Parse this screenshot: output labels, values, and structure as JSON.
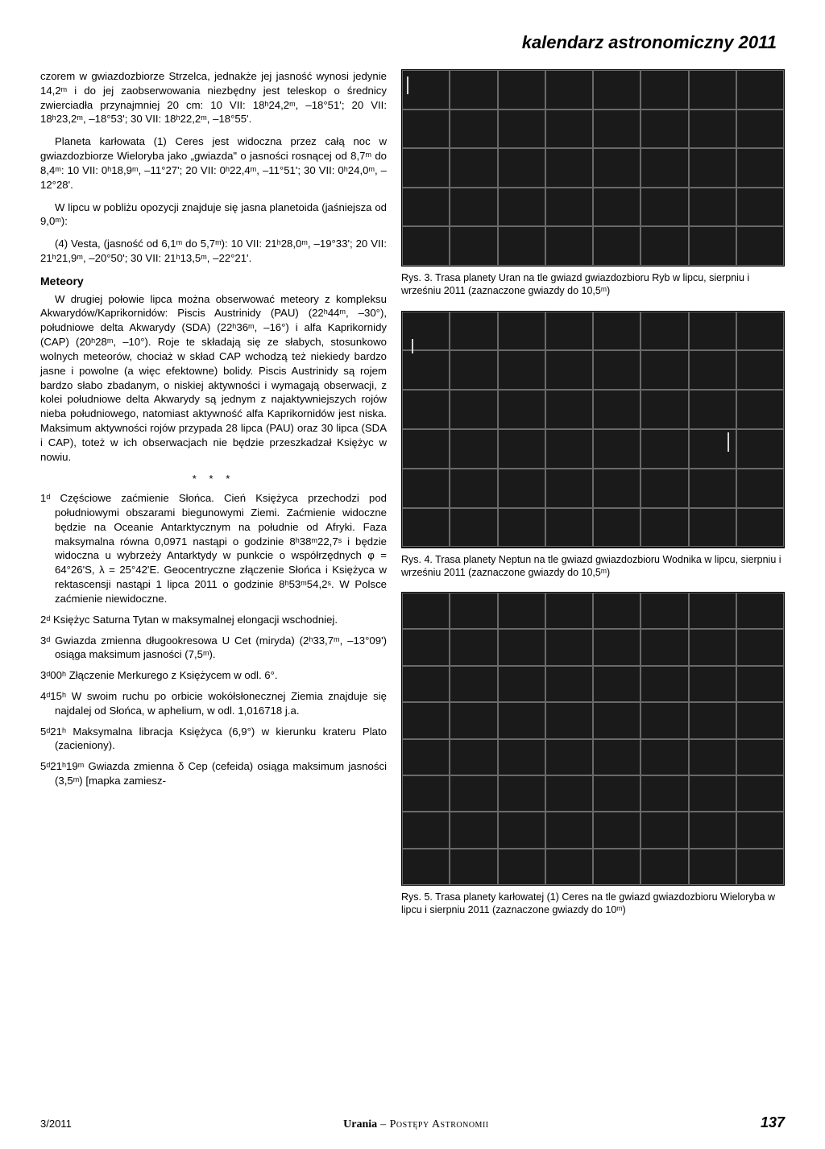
{
  "page": {
    "title": "kalendarz astronomiczny 2011",
    "issue": "3/2011",
    "journal_name": "Urania",
    "journal_sub": " – Postępy Astronomii",
    "page_number": "137"
  },
  "left": {
    "p1": "czorem w gwiazdozbiorze Strzelca, jednakże jej jasność wynosi jedynie 14,2ᵐ i do jej zaobserwowania niezbędny jest teleskop o średnicy zwierciadła przynajmniej 20 cm: 10 VII: 18ʰ24,2ᵐ, –18°51'; 20 VII: 18ʰ23,2ᵐ, –18°53'; 30 VII: 18ʰ22,2ᵐ, –18°55'.",
    "p2": "Planeta karłowata (1) Ceres jest widoczna przez całą noc w gwiazdozbiorze Wieloryba jako „gwiazda\" o jasności rosnącej od 8,7ᵐ do 8,4ᵐ: 10 VII: 0ʰ18,9ᵐ, –11°27'; 20 VII: 0ʰ22,4ᵐ, –11°51'; 30 VII: 0ʰ24,0ᵐ, –12°28'.",
    "p3": "W lipcu w pobliżu opozycji znajduje się jasna planetoida (jaśniejsza od 9,0ᵐ):",
    "p4": "(4) Vesta, (jasność od 6,1ᵐ do 5,7ᵐ): 10 VII: 21ʰ28,0ᵐ, –19°33'; 20 VII: 21ʰ21,9ᵐ, –20°50'; 30 VII: 21ʰ13,5ᵐ, –22°21'.",
    "meteory_head": "Meteory",
    "p5": "W drugiej połowie lipca można obserwować meteory z kompleksu Akwarydów/Kaprikornidów: Piscis Austrinidy (PAU) (22ʰ44ᵐ, –30°), południowe delta Akwarydy (SDA) (22ʰ36ᵐ, –16°) i alfa Kaprikornidy (CAP) (20ʰ28ᵐ, –10°). Roje te składają się ze słabych, stosunkowo wolnych meteorów, chociaż w skład CAP wchodzą też niekiedy bardzo jasne i powolne (a więc efektowne) bolidy. Piscis Austrinidy są rojem bardzo słabo zbadanym, o niskiej aktywności i wymagają obserwacji, z kolei południowe delta Akwarydy są jednym z najaktywniejszych rojów nieba południowego, natomiast aktywność alfa Kaprikornidów jest niska. Maksimum aktywności rojów przypada 28 lipca (PAU) oraz 30 lipca (SDA i CAP), toteż w ich obserwacjach nie będzie przeszkadzał Księżyc w nowiu.",
    "stars": "* * *",
    "e1": "1ᵈ Częściowe zaćmienie Słońca. Cień Księżyca przechodzi pod południowymi obszarami biegunowymi Ziemi. Zaćmienie widoczne będzie na Oceanie Antarktycznym na południe od Afryki. Faza maksymalna równa 0,0971 nastąpi o godzinie 8ʰ38ᵐ22,7ˢ i będzie widoczna u wybrzeży Antarktydy w punkcie o współrzędnych φ = 64°26'S, λ = 25°42'E. Geocentryczne złączenie Słońca i Księżyca w rektascensji nastąpi 1 lipca 2011 o godzinie 8ʰ53ᵐ54,2ˢ. W Polsce zaćmienie niewidoczne.",
    "e2": "2ᵈ Księżyc Saturna Tytan w maksymalnej elongacji wschodniej.",
    "e3": "3ᵈ Gwiazda zmienna długookresowa U Cet (miryda) (2ʰ33,7ᵐ, –13°09') osiąga maksimum jasności (7,5ᵐ).",
    "e4": "3ᵈ00ʰ Złączenie Merkurego z Księżycem w odl. 6°.",
    "e5": "4ᵈ15ʰ W swoim ruchu po orbicie wokółsłonecznej Ziemia znajduje się najdalej od Słońca, w aphelium, w odl. 1,016718 j.a.",
    "e6": "5ᵈ21ʰ Maksymalna libracja Księżyca (6,9°) w kierunku krateru Plato (zacieniony).",
    "e7": "5ᵈ21ʰ19ᵐ Gwiazda zmienna δ Cep (cefeida) osiąga maksimum jasności (3,5ᵐ) [mapka zamiesz-"
  },
  "charts": {
    "c1": {
      "cols": 8,
      "rows": 5,
      "bg": "#1a1a1a",
      "grid_color": "#6a6a6a",
      "caption": "Rys. 3. Trasa planety Uran na tle gwiazd gwiazdozbioru Ryb w lipcu, sierpniu i wrześniu 2011 (zaznaczone gwiazdy do 10,5ᵐ)"
    },
    "c2": {
      "cols": 8,
      "rows": 6,
      "bg": "#1a1a1a",
      "grid_color": "#6a6a6a",
      "caption": "Rys. 4. Trasa planety Neptun na tle gwiazd gwiazdozbioru Wodnika w lipcu, sierpniu i wrześniu 2011 (zaznaczone gwiazdy do 10,5ᵐ)"
    },
    "c3": {
      "cols": 8,
      "rows": 8,
      "bg": "#1a1a1a",
      "grid_color": "#6a6a6a",
      "caption": "Rys. 5. Trasa planety karłowatej (1) Ceres na tle gwiazd gwiazdozbioru Wieloryba w lipcu i sierpniu 2011 (zaznaczone gwiazdy do 10ᵐ)"
    }
  }
}
